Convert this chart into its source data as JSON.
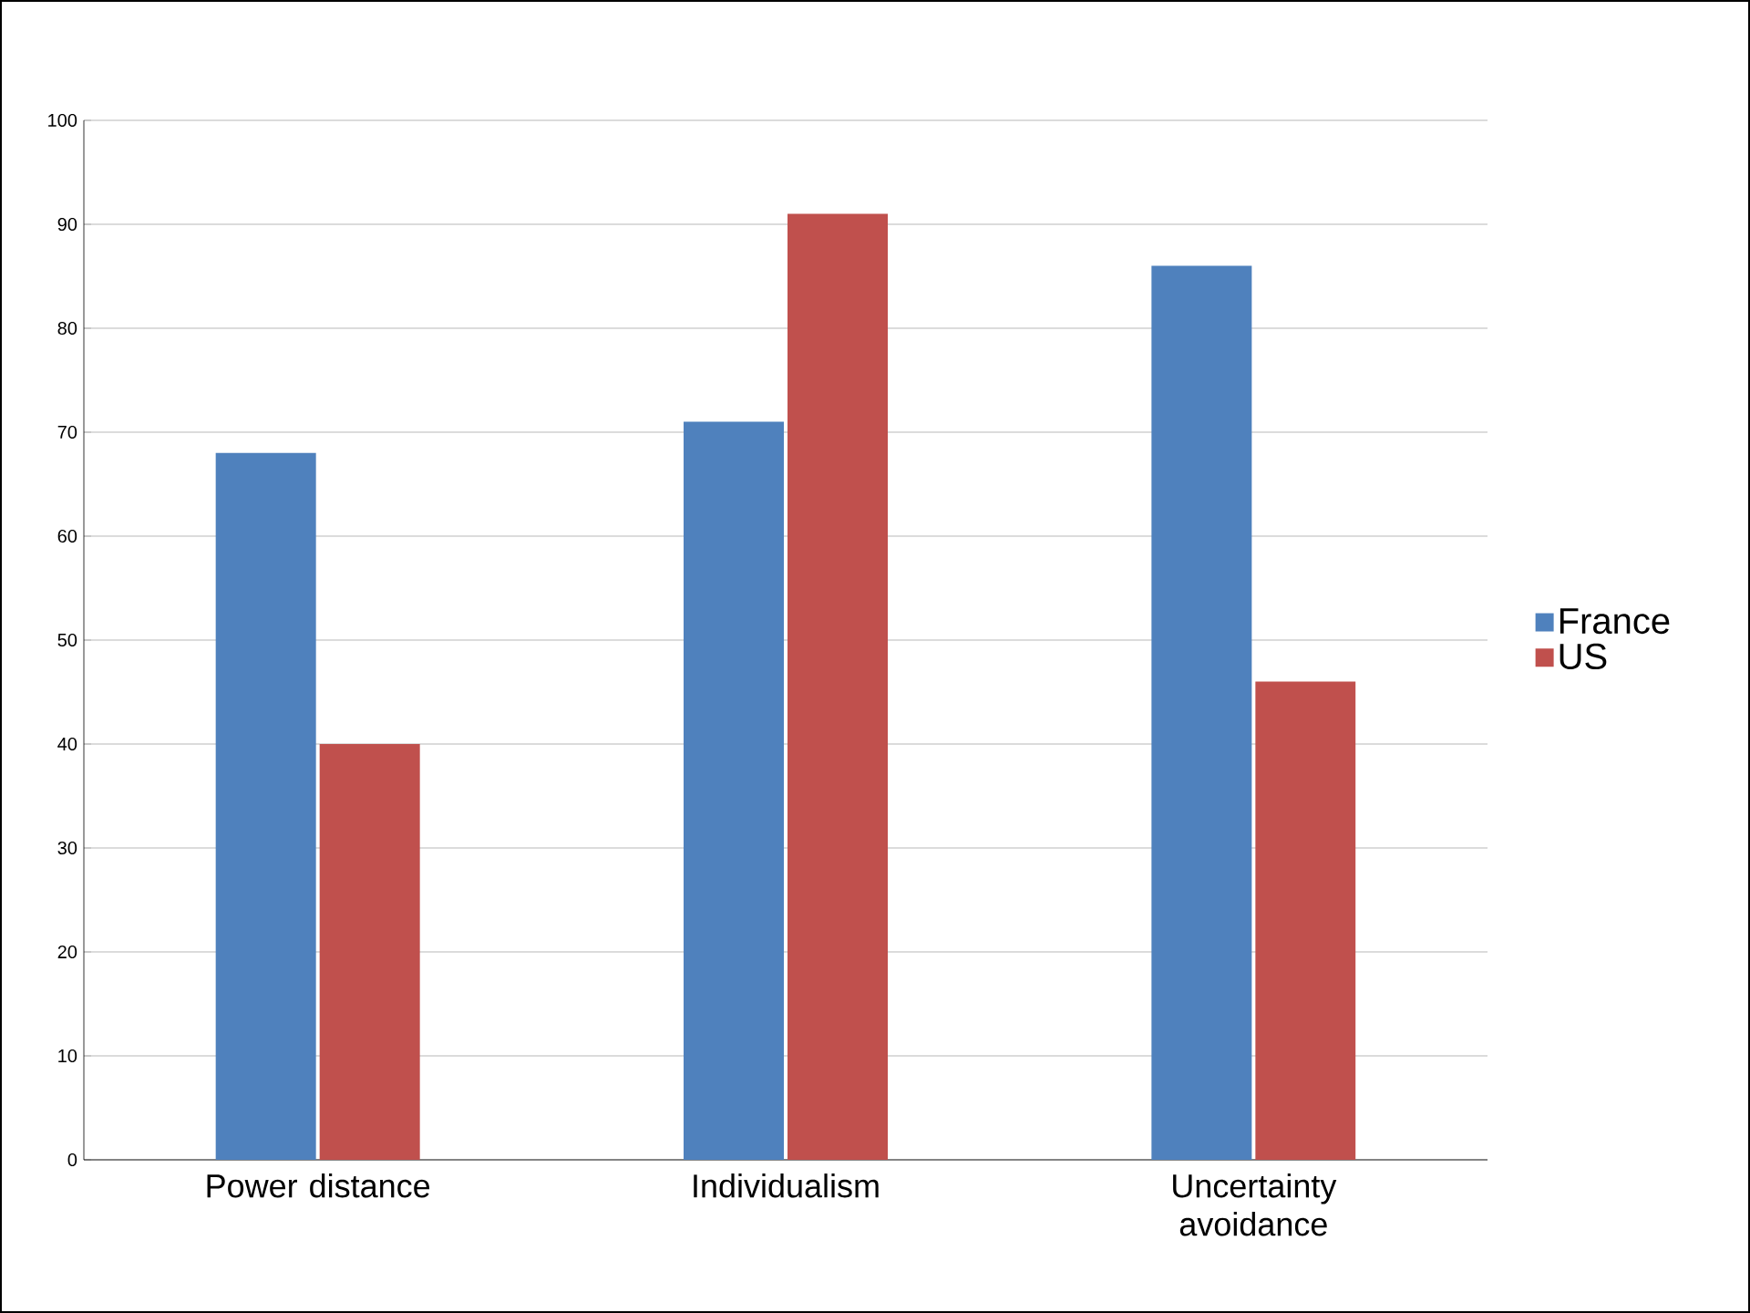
{
  "chart_data": {
    "type": "bar",
    "categories": [
      "Power distance",
      "Individualism",
      "Uncertainty avoidance"
    ],
    "series": [
      {
        "name": "France",
        "color": "#4f81bd",
        "values": [
          68,
          71,
          86
        ]
      },
      {
        "name": "US",
        "color": "#c0504d",
        "values": [
          40,
          91,
          46
        ]
      }
    ],
    "ylim": [
      0,
      100
    ],
    "yticks": [
      0,
      10,
      20,
      30,
      40,
      50,
      60,
      70,
      80,
      90,
      100
    ],
    "grid": "y",
    "legend": "right"
  }
}
